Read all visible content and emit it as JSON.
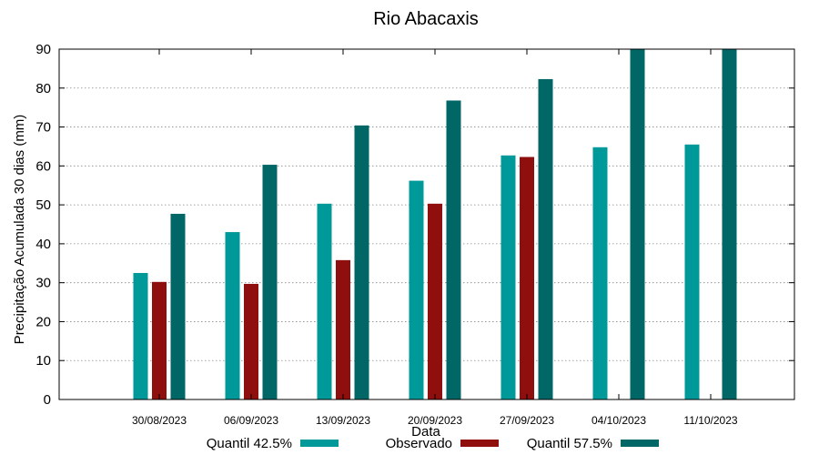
{
  "chart_data": {
    "type": "bar",
    "title": "Rio Abacaxis",
    "xlabel": "Data",
    "ylabel": "Precipitação Acumulada 30 dias (mm)",
    "ylim": [
      0,
      90
    ],
    "yticks": [
      0,
      10,
      20,
      30,
      40,
      50,
      60,
      70,
      80,
      90
    ],
    "grid": true,
    "legend_position": "bottom",
    "categories": [
      "30/08/2023",
      "06/09/2023",
      "13/09/2023",
      "20/09/2023",
      "27/09/2023",
      "04/10/2023",
      "11/10/2023"
    ],
    "series": [
      {
        "name": "Quantil 42.5%",
        "color": "#009999",
        "values": [
          32.5,
          43,
          50.3,
          56.2,
          62.7,
          64.8,
          65.5
        ]
      },
      {
        "name": "Observado",
        "color": "#8f0f0f",
        "values": [
          30.2,
          29.7,
          35.8,
          50.3,
          62.3,
          null,
          null
        ]
      },
      {
        "name": "Quantil 57.5%",
        "color": "#006666",
        "values": [
          47.7,
          60.3,
          70.4,
          76.8,
          82.3,
          90,
          90
        ]
      }
    ]
  }
}
